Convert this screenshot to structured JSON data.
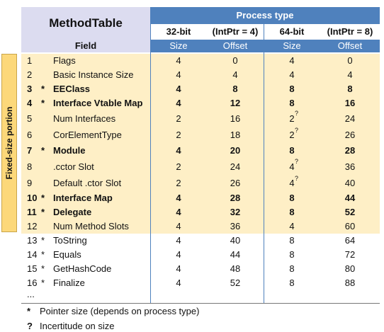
{
  "side_label": "Fixed-size portion",
  "header": {
    "title": "MethodTable",
    "group": "Process type",
    "subcols": [
      "32-bit",
      "(IntPtr = 4)",
      "64-bit",
      "(IntPtr = 8)"
    ],
    "field": "Field",
    "units": [
      "Size",
      "Offset",
      "Size",
      "Offset"
    ]
  },
  "table": {
    "rows": [
      {
        "num": 1,
        "name": "Flags",
        "cells": [
          4,
          0,
          4,
          0
        ]
      },
      {
        "num": 2,
        "name": "Basic Instance Size",
        "cells": [
          4,
          4,
          4,
          4
        ]
      },
      {
        "num": 3,
        "star": "*",
        "name": "EEClass",
        "cells": [
          4,
          8,
          8,
          8
        ],
        "bold": true
      },
      {
        "num": 4,
        "star": "*",
        "name": "Interface Vtable Map",
        "cells": [
          4,
          12,
          8,
          16
        ],
        "bold": true
      },
      {
        "num": 5,
        "name": "Num Interfaces",
        "cells": [
          2,
          16,
          2,
          24
        ],
        "note": "?"
      },
      {
        "num": 6,
        "name": "CorElementType",
        "cells": [
          2,
          18,
          2,
          26
        ],
        "note": "?"
      },
      {
        "num": 7,
        "star": "*",
        "name": "Module",
        "cells": [
          4,
          20,
          8,
          28
        ],
        "bold": true
      },
      {
        "num": 8,
        "name": ".cctor Slot",
        "cells": [
          2,
          24,
          4,
          36
        ],
        "note": "?"
      },
      {
        "num": 9,
        "name": "Default .ctor Slot",
        "cells": [
          2,
          26,
          4,
          40
        ],
        "note": "?"
      },
      {
        "num": 10,
        "star": "*",
        "name": "Interface Map",
        "cells": [
          4,
          28,
          8,
          44
        ],
        "bold": true
      },
      {
        "num": 11,
        "star": "*",
        "name": "Delegate",
        "cells": [
          4,
          32,
          8,
          52
        ],
        "bold": true
      },
      {
        "num": 12,
        "name": "Num Method Slots",
        "cells": [
          4,
          36,
          4,
          60
        ]
      },
      {
        "num": 13,
        "star": "*",
        "name": "ToString",
        "cells": [
          4,
          40,
          8,
          64
        ]
      },
      {
        "num": 14,
        "star": "*",
        "name": "Equals",
        "cells": [
          4,
          44,
          8,
          72
        ]
      },
      {
        "num": 15,
        "star": "*",
        "name": "GetHashCode",
        "cells": [
          4,
          48,
          8,
          80
        ]
      },
      {
        "num": 16,
        "star": "*",
        "name": "Finalize",
        "cells": [
          4,
          52,
          8,
          88
        ]
      }
    ],
    "ellipsis": "..."
  },
  "footnotes": [
    {
      "symbol": "*",
      "text": "Pointer size (depends on process type)"
    },
    {
      "symbol": "?",
      "text": "Incertitude on size"
    }
  ]
}
